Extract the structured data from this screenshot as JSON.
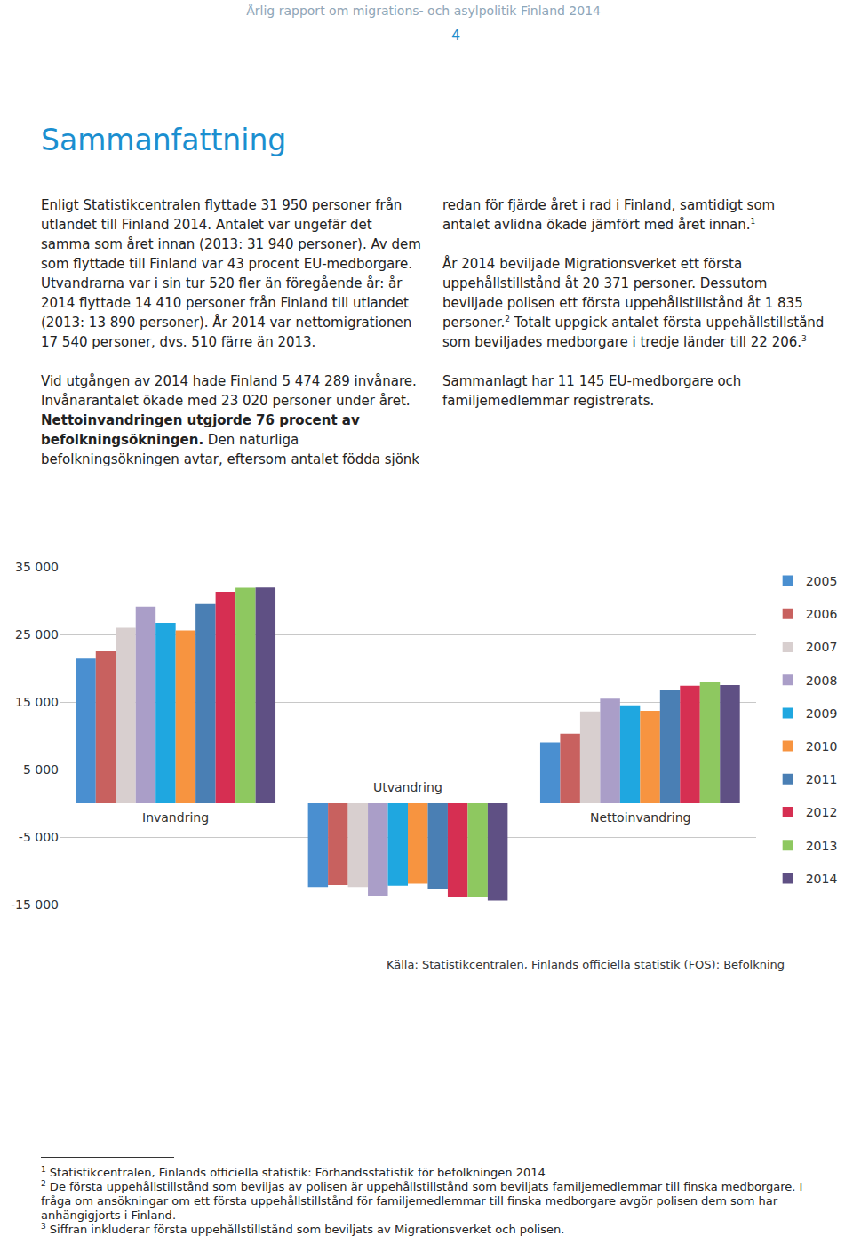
{
  "header": {
    "title": "Årlig rapport om migrations- och asylpolitik Finland 2014",
    "page": "4"
  },
  "title": "Sammanfattning",
  "paragraphs": [
    [
      {
        "text": "Enligt Statistikcentralen flyttade 31 950 personer från utlandet till Finland 2014. Antalet var ungefär det samma som året innan (2013: 31 940 personer). Av dem som flyttade till Finland var 43 procent EU-medborgare. Utvandrarna var i sin tur 520 fler än föregående år: år 2014 flyttade 14 410 personer från Finland till utlandet (2013: 13 890 personer). År 2014 var nettomigrationen 17 540 personer, dvs. 510 färre än 2013."
      }
    ],
    [
      {
        "text": "Vid utgången av 2014 hade Finland 5 474 289 invånare. Invånarantalet ökade med 23 020 personer under året. "
      },
      {
        "text": "Nettoinvandringen utgjorde 76 procent av befolkningsökningen.",
        "bold": true
      },
      {
        "text": " Den naturliga befolkningsökningen avtar, eftersom antalet födda sjönk redan för fjärde året i rad i Finland, samtidigt som antalet avlidna ökade jämfört med året innan."
      },
      {
        "text": "1",
        "sup": true
      }
    ],
    [
      {
        "text": "År 2014 beviljade Migrationsverket ett första uppehållstillstånd åt 20 371 personer. Dessutom beviljade polisen ett första uppehållstillstånd åt 1 835 personer."
      },
      {
        "text": "2",
        "sup": true
      },
      {
        "text": " Totalt uppgick antalet första uppehållstillstånd som beviljades medborgare i tredje länder till 22 206."
      },
      {
        "text": "3",
        "sup": true
      }
    ],
    [
      {
        "text": "Sammanlagt har 11 145 EU-medborgare och familjemedlemmar registrerats."
      }
    ]
  ],
  "chart_data": {
    "type": "bar",
    "categories": [
      "Invandring",
      "Utvandring",
      "Nettoinvandring"
    ],
    "tick_labels": "y",
    "grid": true,
    "legend": "right",
    "ylim": [
      -15000,
      35000
    ],
    "yticks": [
      {
        "value": -15000,
        "label": "-15 000"
      },
      {
        "value": -5000,
        "label": "-5 000"
      },
      {
        "value": 5000,
        "label": "5 000"
      },
      {
        "value": 15000,
        "label": "15 000"
      },
      {
        "value": 25000,
        "label": "25 000"
      },
      {
        "value": 35000,
        "label": "35 000"
      }
    ],
    "series": [
      {
        "name": "2005",
        "color": "#4a8fd0",
        "values": [
          21400,
          -12400,
          9000
        ]
      },
      {
        "name": "2006",
        "color": "#c8615f",
        "values": [
          22500,
          -12100,
          10300
        ]
      },
      {
        "name": "2007",
        "color": "#d8cfcf",
        "values": [
          26000,
          -12400,
          13600
        ]
      },
      {
        "name": "2008",
        "color": "#aa9ec8",
        "values": [
          29100,
          -13700,
          15500
        ]
      },
      {
        "name": "2009",
        "color": "#1fa7e0",
        "values": [
          26700,
          -12200,
          14500
        ]
      },
      {
        "name": "2010",
        "color": "#f79440",
        "values": [
          25600,
          -11900,
          13700
        ]
      },
      {
        "name": "2011",
        "color": "#4a7fb4",
        "values": [
          29500,
          -12700,
          16800
        ]
      },
      {
        "name": "2012",
        "color": "#d62f52",
        "values": [
          31300,
          -13800,
          17400
        ]
      },
      {
        "name": "2013",
        "color": "#8ec860",
        "values": [
          31900,
          -13900,
          18000
        ]
      },
      {
        "name": "2014",
        "color": "#5f5084",
        "values": [
          31950,
          -14400,
          17500
        ]
      }
    ]
  },
  "source": "Källa: Statistikcentralen, Finlands officiella statistik (FOS): Befolkning",
  "footnotes": [
    {
      "mark": "1",
      "text": "Statistikcentralen, Finlands officiella statistik: Förhandsstatistik för befolkningen 2014"
    },
    {
      "mark": "2",
      "text": "De första uppehållstillstånd som beviljas av polisen är uppehållstillstånd som beviljats familjemedlemmar till finska medborgare. I fråga om ansökningar om ett första uppehållstillstånd för familjemedlemmar till finska medborgare avgör polisen dem som har anhängigjorts i Finland."
    },
    {
      "mark": "3",
      "text": "Siffran inkluderar första uppehållstillstånd som beviljats av Migrationsverket och polisen."
    }
  ]
}
